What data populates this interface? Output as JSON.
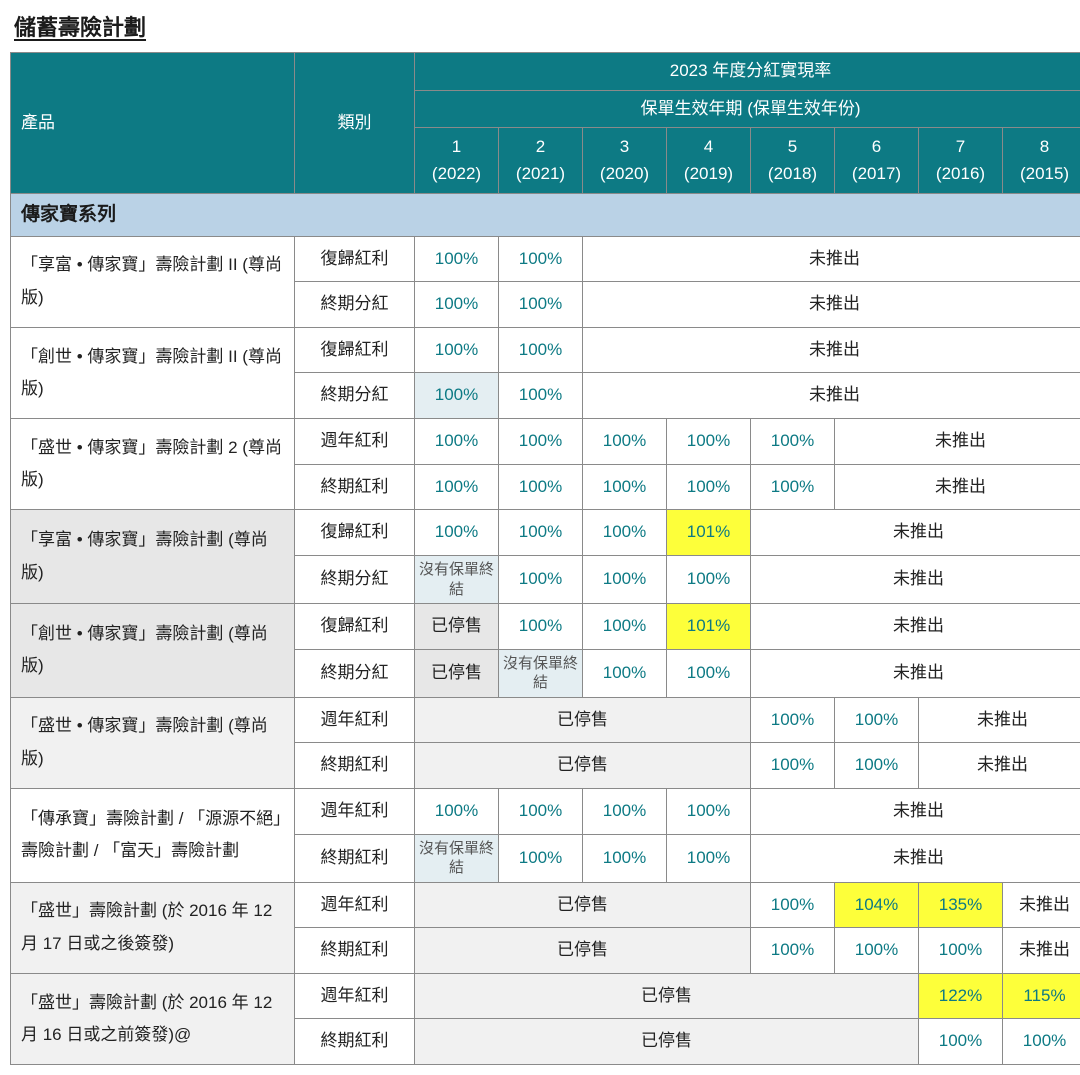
{
  "title": "儲蓄壽險計劃",
  "headers": {
    "product": "產品",
    "category": "類別",
    "mainHeader": "2023 年度分紅實現率",
    "subHeader": "保單生效年期 (保單生效年份)",
    "years": [
      {
        "n": "1",
        "y": "(2022)"
      },
      {
        "n": "2",
        "y": "(2021)"
      },
      {
        "n": "3",
        "y": "(2020)"
      },
      {
        "n": "4",
        "y": "(2019)"
      },
      {
        "n": "5",
        "y": "(2018)"
      },
      {
        "n": "6",
        "y": "(2017)"
      },
      {
        "n": "7",
        "y": "(2016)"
      },
      {
        "n": "8",
        "y": "(2015)"
      }
    ]
  },
  "section": "傳家寶系列",
  "labels": {
    "notLaunched": "未推出",
    "discontinued": "已停售",
    "noTermination": "沒有保單終結"
  },
  "products": [
    {
      "name": "「享富 • 傳家寶」壽險計劃 II (尊尚版)",
      "rows": [
        {
          "cat": "復歸紅利",
          "cells": [
            {
              "v": "100%"
            },
            {
              "v": "100%"
            },
            {
              "span": 6,
              "t": "notLaunched"
            }
          ]
        },
        {
          "cat": "終期分紅",
          "cells": [
            {
              "v": "100%"
            },
            {
              "v": "100%"
            },
            {
              "span": 6,
              "t": "notLaunched"
            }
          ]
        }
      ]
    },
    {
      "name": "「創世 • 傳家寶」壽險計劃 II (尊尚版)",
      "rows": [
        {
          "cat": "復歸紅利",
          "cells": [
            {
              "v": "100%"
            },
            {
              "v": "100%"
            },
            {
              "span": 6,
              "t": "notLaunched"
            }
          ]
        },
        {
          "cat": "終期分紅",
          "cells": [
            {
              "v": "100%",
              "bg": "bg-blue-lt"
            },
            {
              "v": "100%"
            },
            {
              "span": 6,
              "t": "notLaunched"
            }
          ]
        }
      ]
    },
    {
      "name": "「盛世 • 傳家寶」壽險計劃 2 (尊尚版)",
      "rows": [
        {
          "cat": "週年紅利",
          "cells": [
            {
              "v": "100%"
            },
            {
              "v": "100%"
            },
            {
              "v": "100%"
            },
            {
              "v": "100%"
            },
            {
              "v": "100%"
            },
            {
              "span": 3,
              "t": "notLaunched"
            }
          ]
        },
        {
          "cat": "終期紅利",
          "cells": [
            {
              "v": "100%"
            },
            {
              "v": "100%"
            },
            {
              "v": "100%"
            },
            {
              "v": "100%"
            },
            {
              "v": "100%"
            },
            {
              "span": 3,
              "t": "notLaunched"
            }
          ]
        }
      ]
    },
    {
      "name": "「享富 • 傳家寶」壽險計劃 (尊尚版)",
      "prodBg": "shade",
      "rows": [
        {
          "cat": "復歸紅利",
          "cells": [
            {
              "v": "100%"
            },
            {
              "v": "100%"
            },
            {
              "v": "100%"
            },
            {
              "v": "101%",
              "bg": "hl"
            },
            {
              "span": 4,
              "t": "notLaunched"
            }
          ]
        },
        {
          "cat": "終期分紅",
          "cells": [
            {
              "t": "noTermination",
              "bg": "bg-blue-lt",
              "sm": true
            },
            {
              "v": "100%"
            },
            {
              "v": "100%"
            },
            {
              "v": "100%"
            },
            {
              "span": 4,
              "t": "notLaunched"
            }
          ]
        }
      ]
    },
    {
      "name": "「創世 • 傳家寶」壽險計劃 (尊尚版)",
      "prodBg": "shade",
      "rows": [
        {
          "cat": "復歸紅利",
          "cells": [
            {
              "t": "discontinued",
              "bg": "shade"
            },
            {
              "v": "100%"
            },
            {
              "v": "100%"
            },
            {
              "v": "101%",
              "bg": "hl"
            },
            {
              "span": 4,
              "t": "notLaunched"
            }
          ]
        },
        {
          "cat": "終期分紅",
          "cells": [
            {
              "t": "discontinued",
              "bg": "shade"
            },
            {
              "t": "noTermination",
              "bg": "bg-blue-lt",
              "sm": true
            },
            {
              "v": "100%"
            },
            {
              "v": "100%"
            },
            {
              "span": 4,
              "t": "notLaunched"
            }
          ]
        }
      ]
    },
    {
      "name": "「盛世 • 傳家寶」壽險計劃 (尊尚版)",
      "prodBg": "shade-lt",
      "rows": [
        {
          "cat": "週年紅利",
          "cells": [
            {
              "span": 4,
              "t": "discontinued",
              "bg": "shade-lt"
            },
            {
              "v": "100%"
            },
            {
              "v": "100%"
            },
            {
              "span": 2,
              "t": "notLaunched"
            }
          ]
        },
        {
          "cat": "終期紅利",
          "cells": [
            {
              "span": 4,
              "t": "discontinued",
              "bg": "shade-lt"
            },
            {
              "v": "100%"
            },
            {
              "v": "100%"
            },
            {
              "span": 2,
              "t": "notLaunched"
            }
          ]
        }
      ]
    },
    {
      "name": "「傳承寶」壽險計劃 / 「源源不絕」壽險計劃 / 「富天」壽險計劃",
      "rows": [
        {
          "cat": "週年紅利",
          "cells": [
            {
              "v": "100%"
            },
            {
              "v": "100%"
            },
            {
              "v": "100%"
            },
            {
              "v": "100%"
            },
            {
              "span": 4,
              "t": "notLaunched"
            }
          ]
        },
        {
          "cat": "終期紅利",
          "cells": [
            {
              "t": "noTermination",
              "bg": "bg-blue-lt",
              "sm": true
            },
            {
              "v": "100%"
            },
            {
              "v": "100%"
            },
            {
              "v": "100%"
            },
            {
              "span": 4,
              "t": "notLaunched"
            }
          ]
        }
      ]
    },
    {
      "name": "「盛世」壽險計劃 (於 2016 年 12 月 17 日或之後簽發)",
      "prodBg": "shade-lt",
      "rows": [
        {
          "cat": "週年紅利",
          "cells": [
            {
              "span": 4,
              "t": "discontinued",
              "bg": "shade-lt"
            },
            {
              "v": "100%"
            },
            {
              "v": "104%",
              "bg": "hl"
            },
            {
              "v": "135%",
              "bg": "hl"
            },
            {
              "span": 1,
              "t": "notLaunched"
            }
          ]
        },
        {
          "cat": "終期紅利",
          "cells": [
            {
              "span": 4,
              "t": "discontinued",
              "bg": "shade-lt"
            },
            {
              "v": "100%"
            },
            {
              "v": "100%"
            },
            {
              "v": "100%"
            },
            {
              "span": 1,
              "t": "notLaunched"
            }
          ]
        }
      ]
    },
    {
      "name": "「盛世」壽險計劃 (於 2016 年 12 月 16 日或之前簽發)@",
      "prodBg": "shade-lt",
      "rows": [
        {
          "cat": "週年紅利",
          "cells": [
            {
              "span": 6,
              "t": "discontinued",
              "bg": "shade-lt"
            },
            {
              "v": "122%",
              "bg": "hl"
            },
            {
              "v": "115%",
              "bg": "hl"
            }
          ]
        },
        {
          "cat": "終期紅利",
          "cells": [
            {
              "span": 6,
              "t": "discontinued",
              "bg": "shade-lt"
            },
            {
              "v": "100%"
            },
            {
              "v": "100%"
            }
          ]
        }
      ]
    }
  ],
  "colors": {
    "headerBg": "#0d7a84",
    "headerText": "#ffffff",
    "sectionBg": "#bad2e6",
    "valueText": "#0d7a84",
    "highlight": "#fdff3a",
    "border": "#8a8a8a"
  }
}
